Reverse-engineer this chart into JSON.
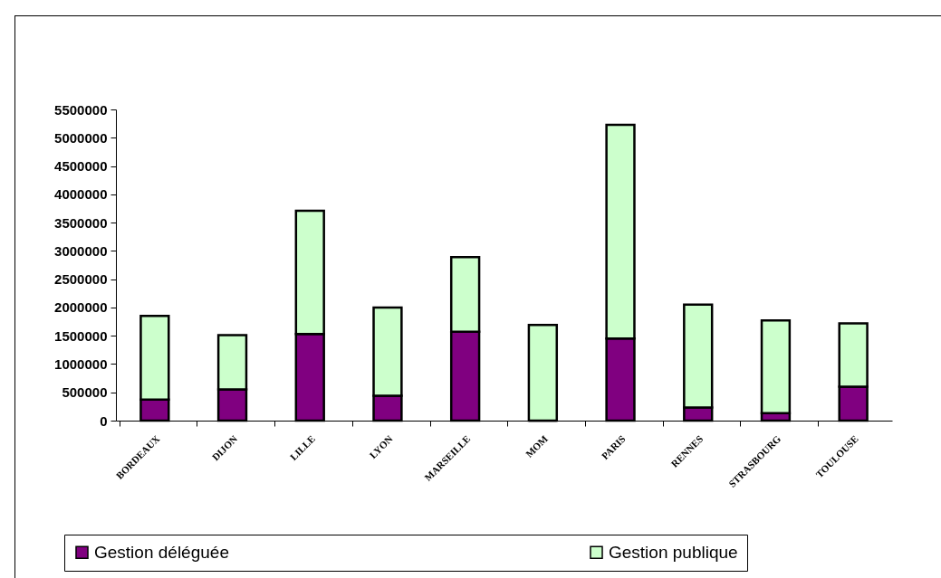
{
  "chart_data": {
    "type": "bar",
    "stacked": true,
    "categories": [
      "BORDEAUX",
      "DIJON",
      "LILLE",
      "LYON",
      "MARSEILLE",
      "MOM",
      "PARIS",
      "RENNES",
      "STRASBOURG",
      "TOULOUSE"
    ],
    "series": [
      {
        "name": "Gestion déléguée",
        "color": "#800080",
        "values": [
          370000,
          550000,
          1530000,
          440000,
          1570000,
          0,
          1450000,
          230000,
          130000,
          600000
        ]
      },
      {
        "name": "Gestion publique",
        "color": "#ccffcc",
        "values": [
          1480000,
          960000,
          2180000,
          1560000,
          1320000,
          1690000,
          3780000,
          1820000,
          1640000,
          1120000
        ]
      }
    ],
    "ylim": [
      0,
      5500000
    ],
    "yticks": [
      0,
      500000,
      1000000,
      1500000,
      2000000,
      2500000,
      3000000,
      3500000,
      4000000,
      4500000,
      5000000,
      5500000
    ],
    "grid": false,
    "legend": "bottom"
  }
}
